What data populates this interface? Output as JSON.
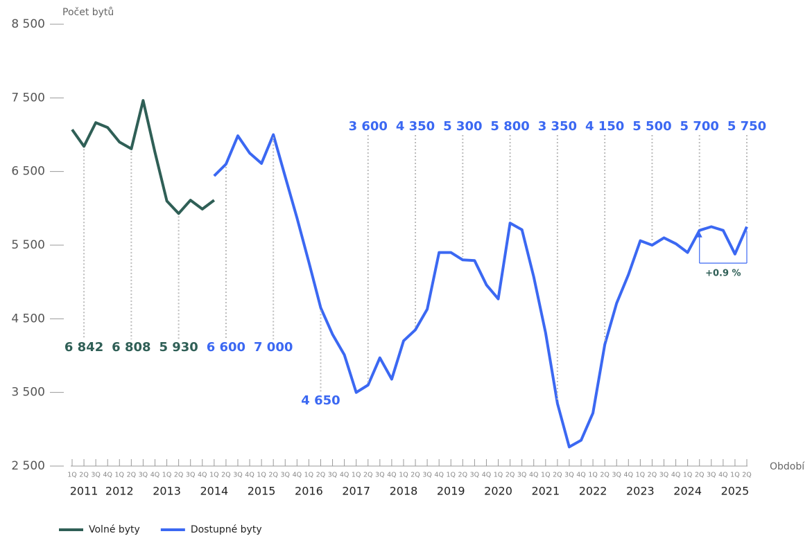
{
  "chart_data": {
    "type": "line",
    "y_axis_label": "Počet bytů",
    "x_axis_label": "Období",
    "categories": [
      "1Q",
      "2Q",
      "3Q",
      "4Q",
      "1Q",
      "2Q",
      "3Q",
      "4Q",
      "1Q",
      "2Q",
      "3Q",
      "4Q",
      "1Q",
      "2Q",
      "3Q",
      "4Q",
      "1Q",
      "2Q",
      "3Q",
      "4Q",
      "1Q",
      "2Q",
      "3Q",
      "4Q",
      "1Q",
      "2Q",
      "3Q",
      "4Q",
      "1Q",
      "2Q",
      "3Q",
      "4Q",
      "1Q",
      "2Q",
      "3Q",
      "4Q",
      "1Q",
      "2Q",
      "3Q",
      "4Q",
      "1Q",
      "2Q",
      "3Q",
      "4Q",
      "1Q",
      "2Q",
      "3Q",
      "4Q",
      "1Q",
      "2Q",
      "3Q",
      "4Q",
      "1Q",
      "2Q",
      "3Q",
      "4Q",
      "1Q",
      "2Q"
    ],
    "years": [
      "2011",
      "2012",
      "2013",
      "2014",
      "2015",
      "2016",
      "2017",
      "2018",
      "2019",
      "2020",
      "2021",
      "2022",
      "2023",
      "2024",
      "2025"
    ],
    "ylim": [
      2500,
      8500
    ],
    "yticks": [
      {
        "value": 2500,
        "label": "2 500"
      },
      {
        "value": 3500,
        "label": "3 500"
      },
      {
        "value": 4500,
        "label": "4 500"
      },
      {
        "value": 5500,
        "label": "5 500"
      },
      {
        "value": 6500,
        "label": "6 500"
      },
      {
        "value": 7500,
        "label": "7 500"
      },
      {
        "value": 8500,
        "label": "8 500"
      }
    ],
    "series": [
      {
        "name": "Volné byty",
        "color": "#2f5f56",
        "values": [
          7070,
          6842,
          7164,
          7098,
          6900,
          6808,
          7465,
          6760,
          6100,
          5930,
          6110,
          5990,
          6110,
          null,
          null,
          null,
          null,
          null,
          null,
          null,
          null,
          null,
          null,
          null,
          null,
          null,
          null,
          null,
          null,
          null,
          null,
          null,
          null,
          null,
          null,
          null,
          null,
          null,
          null,
          null,
          null,
          null,
          null,
          null,
          null,
          null,
          null,
          null,
          null,
          null,
          null,
          null,
          null,
          null,
          null,
          null,
          null,
          null
        ],
        "value_labels": [
          null,
          "6 842",
          null,
          null,
          null,
          "6 808",
          null,
          null,
          null,
          "5 930",
          null,
          null,
          null,
          null,
          null,
          null,
          null,
          null,
          null,
          null,
          null,
          null,
          null,
          null,
          null,
          null,
          null,
          null,
          null,
          null,
          null,
          null,
          null,
          null,
          null,
          null,
          null,
          null,
          null,
          null,
          null,
          null,
          null,
          null,
          null,
          null,
          null,
          null,
          null,
          null,
          null,
          null,
          null,
          null,
          null,
          null,
          null,
          null
        ]
      },
      {
        "name": "Dostupné byty",
        "color": "#3b68f2",
        "values": [
          null,
          null,
          null,
          null,
          null,
          null,
          null,
          null,
          null,
          null,
          null,
          null,
          6440,
          6600,
          6985,
          6750,
          6610,
          7000,
          6430,
          5870,
          5270,
          4650,
          4290,
          4010,
          3500,
          3600,
          3970,
          3680,
          4200,
          4350,
          4630,
          5400,
          5400,
          5300,
          5290,
          4960,
          4770,
          5800,
          5710,
          5070,
          4310,
          3350,
          2760,
          2850,
          3220,
          4150,
          4710,
          5100,
          5560,
          5500,
          5600,
          5520,
          5400,
          5700,
          5750,
          5700,
          5380,
          5750
        ],
        "value_labels": [
          null,
          null,
          null,
          null,
          null,
          null,
          null,
          null,
          null,
          null,
          null,
          null,
          null,
          "6 600",
          null,
          null,
          null,
          "7 000",
          null,
          null,
          null,
          "4 650",
          null,
          null,
          null,
          "3 600",
          null,
          null,
          null,
          "4 350",
          null,
          null,
          null,
          "5 300",
          null,
          null,
          null,
          "5 800",
          null,
          null,
          null,
          "3 350",
          null,
          null,
          null,
          "4 150",
          null,
          null,
          null,
          "5 500",
          null,
          null,
          null,
          "5 700",
          null,
          null,
          null,
          "5 750"
        ]
      }
    ],
    "annotation": "+0.9 %"
  }
}
